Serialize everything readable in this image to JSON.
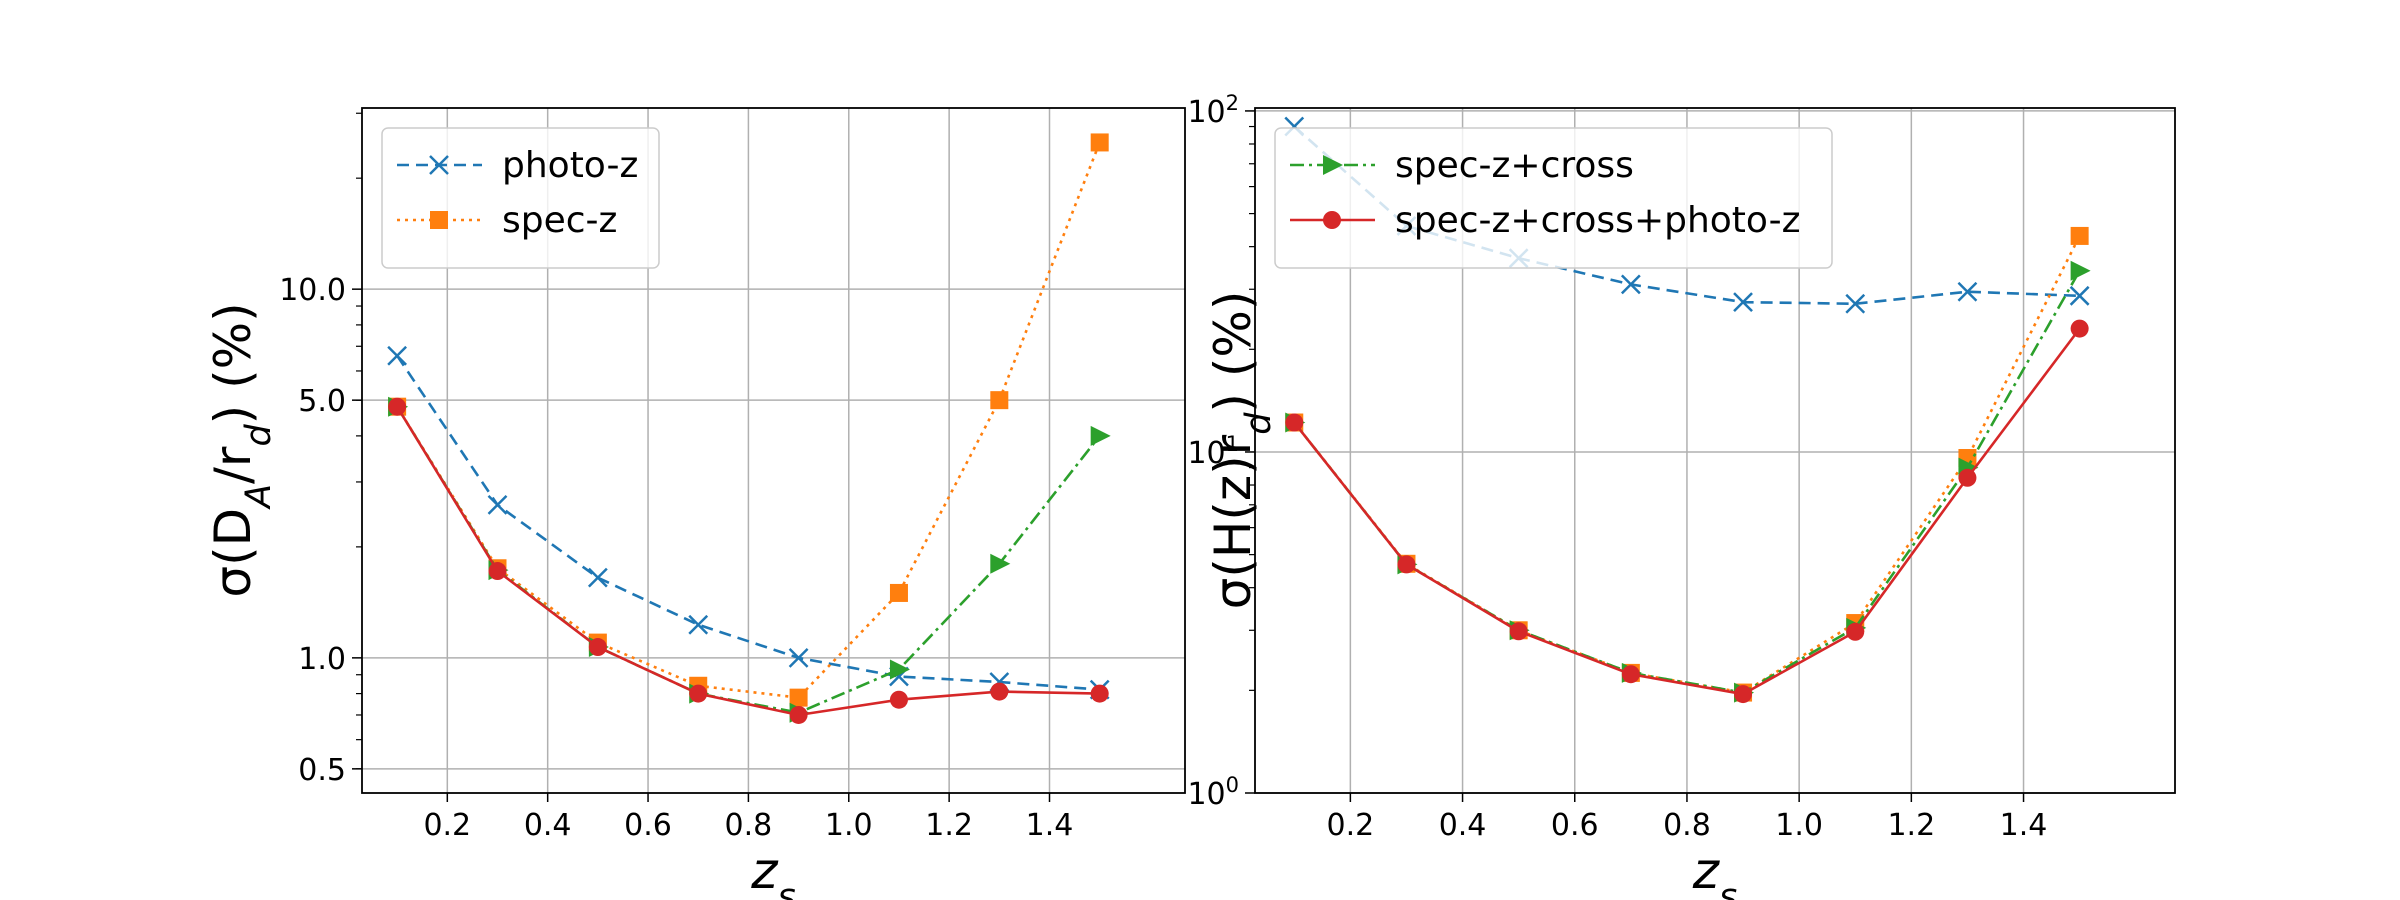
{
  "chart_data": [
    {
      "type": "line",
      "yscale": "log",
      "xlabel": "z_s",
      "ylabel": "σ(D_A/r_d) (%)",
      "xlim": [
        0.03,
        1.67
      ],
      "ylim": [
        0.43,
        31.0
      ],
      "xticks": [
        0.2,
        0.4,
        0.6,
        0.8,
        1.0,
        1.2,
        1.4
      ],
      "xtick_labels": [
        "0.2",
        "0.4",
        "0.6",
        "0.8",
        "1.0",
        "1.2",
        "1.4"
      ],
      "yticks": [
        0.5,
        1.0,
        5.0,
        10.0
      ],
      "ytick_labels": [
        "0.5",
        "1.0",
        "5.0",
        "10.0"
      ],
      "grid": true,
      "legend_position": "top-left",
      "legend_series": [
        "photo-z",
        "spec-z"
      ],
      "x": [
        0.1,
        0.3,
        0.5,
        0.7,
        0.9,
        1.1,
        1.3,
        1.5
      ],
      "series": [
        {
          "name": "photo-z",
          "color": "#1f77b4",
          "dash": "dashed",
          "marker": "x",
          "values": [
            6.6,
            2.6,
            1.65,
            1.23,
            1.0,
            0.89,
            0.86,
            0.82
          ]
        },
        {
          "name": "spec-z",
          "color": "#ff7f0e",
          "dash": "dotted",
          "marker": "square",
          "values": [
            4.8,
            1.75,
            1.1,
            0.84,
            0.78,
            1.5,
            5.0,
            25.0
          ]
        },
        {
          "name": "spec-z+cross",
          "color": "#2ca02c",
          "dash": "dashdot",
          "marker": "triangle-right",
          "values": [
            4.8,
            1.73,
            1.07,
            0.8,
            0.71,
            0.93,
            1.8,
            4.0
          ]
        },
        {
          "name": "spec-z+cross+photo-z",
          "color": "#d62728",
          "dash": "solid",
          "marker": "circle",
          "values": [
            4.8,
            1.72,
            1.07,
            0.8,
            0.7,
            0.77,
            0.81,
            0.8
          ]
        }
      ]
    },
    {
      "type": "line",
      "yscale": "log",
      "xlabel": "z_s",
      "ylabel": "σ(H(z)r_d) (%)",
      "xlim": [
        0.03,
        1.67
      ],
      "ylim": [
        1.0,
        102.0
      ],
      "xticks": [
        0.2,
        0.4,
        0.6,
        0.8,
        1.0,
        1.2,
        1.4
      ],
      "xtick_labels": [
        "0.2",
        "0.4",
        "0.6",
        "0.8",
        "1.0",
        "1.2",
        "1.4"
      ],
      "yticks": [
        1,
        10,
        100
      ],
      "ytick_labels": [
        {
          "base": "10",
          "exp": "0"
        },
        {
          "base": "10",
          "exp": "1"
        },
        {
          "base": "10",
          "exp": "2"
        }
      ],
      "grid": true,
      "legend_position": "top-left",
      "legend_series": [
        "spec-z+cross",
        "spec-z+cross+photo-z"
      ],
      "x": [
        0.1,
        0.3,
        0.5,
        0.7,
        0.9,
        1.1,
        1.3,
        1.5
      ],
      "series": [
        {
          "name": "photo-z",
          "color": "#1f77b4",
          "dash": "dashed",
          "marker": "x",
          "values": [
            90.0,
            46.0,
            37.0,
            31.0,
            27.5,
            27.2,
            29.5,
            28.7
          ]
        },
        {
          "name": "spec-z",
          "color": "#ff7f0e",
          "dash": "dotted",
          "marker": "square",
          "values": [
            12.2,
            4.7,
            3.0,
            2.25,
            1.97,
            3.15,
            9.6,
            43.0
          ]
        },
        {
          "name": "spec-z+cross",
          "color": "#2ca02c",
          "dash": "dashdot",
          "marker": "triangle-right",
          "values": [
            12.2,
            4.68,
            3.0,
            2.25,
            1.97,
            3.05,
            9.0,
            34.0
          ]
        },
        {
          "name": "spec-z+cross+photo-z",
          "color": "#d62728",
          "dash": "solid",
          "marker": "circle",
          "values": [
            12.2,
            4.68,
            2.98,
            2.23,
            1.95,
            2.97,
            8.4,
            23.0
          ]
        }
      ]
    }
  ]
}
